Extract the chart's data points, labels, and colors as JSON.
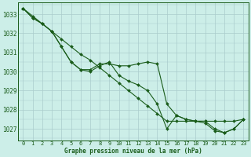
{
  "bg_color": "#cceee8",
  "grid_color": "#aacccc",
  "line_color": "#1a5c1a",
  "marker_color": "#1a5c1a",
  "xlabel": "Graphe pression niveau de la mer (hPa)",
  "xlabel_color": "#1a5c1a",
  "tick_color": "#1a5c1a",
  "xlim": [
    -0.5,
    23.5
  ],
  "ylim": [
    1026.4,
    1033.6
  ],
  "yticks": [
    1027,
    1028,
    1029,
    1030,
    1031,
    1032,
    1033
  ],
  "xticks": [
    0,
    1,
    2,
    3,
    4,
    5,
    6,
    7,
    8,
    9,
    10,
    11,
    12,
    13,
    14,
    15,
    16,
    17,
    18,
    19,
    20,
    21,
    22,
    23
  ],
  "series_straight": [
    1033.3,
    1032.9,
    1032.5,
    1032.1,
    1031.7,
    1031.3,
    1030.9,
    1030.6,
    1030.2,
    1029.8,
    1029.4,
    1029.0,
    1028.6,
    1028.2,
    1027.8,
    1027.4,
    1027.4,
    1027.4,
    1027.4,
    1027.4,
    1027.4,
    1027.4,
    1027.4,
    1027.5
  ],
  "series_line1": [
    1033.3,
    1032.8,
    1032.5,
    1032.1,
    1031.3,
    1030.5,
    1030.1,
    1030.1,
    1030.4,
    1030.4,
    1030.3,
    1030.3,
    1030.4,
    1030.5,
    1030.4,
    1028.3,
    1027.7,
    1027.5,
    1027.4,
    1027.4,
    1027.0,
    1026.8,
    1027.0,
    1027.5
  ],
  "series_line2": [
    1033.3,
    1032.8,
    1032.5,
    1032.1,
    1031.3,
    1030.5,
    1030.1,
    1030.0,
    1030.3,
    1030.5,
    1029.8,
    1029.5,
    1029.3,
    1029.0,
    1028.3,
    1027.0,
    1027.7,
    1027.5,
    1027.4,
    1027.3,
    1026.9,
    1026.8,
    1027.0,
    1027.5
  ]
}
